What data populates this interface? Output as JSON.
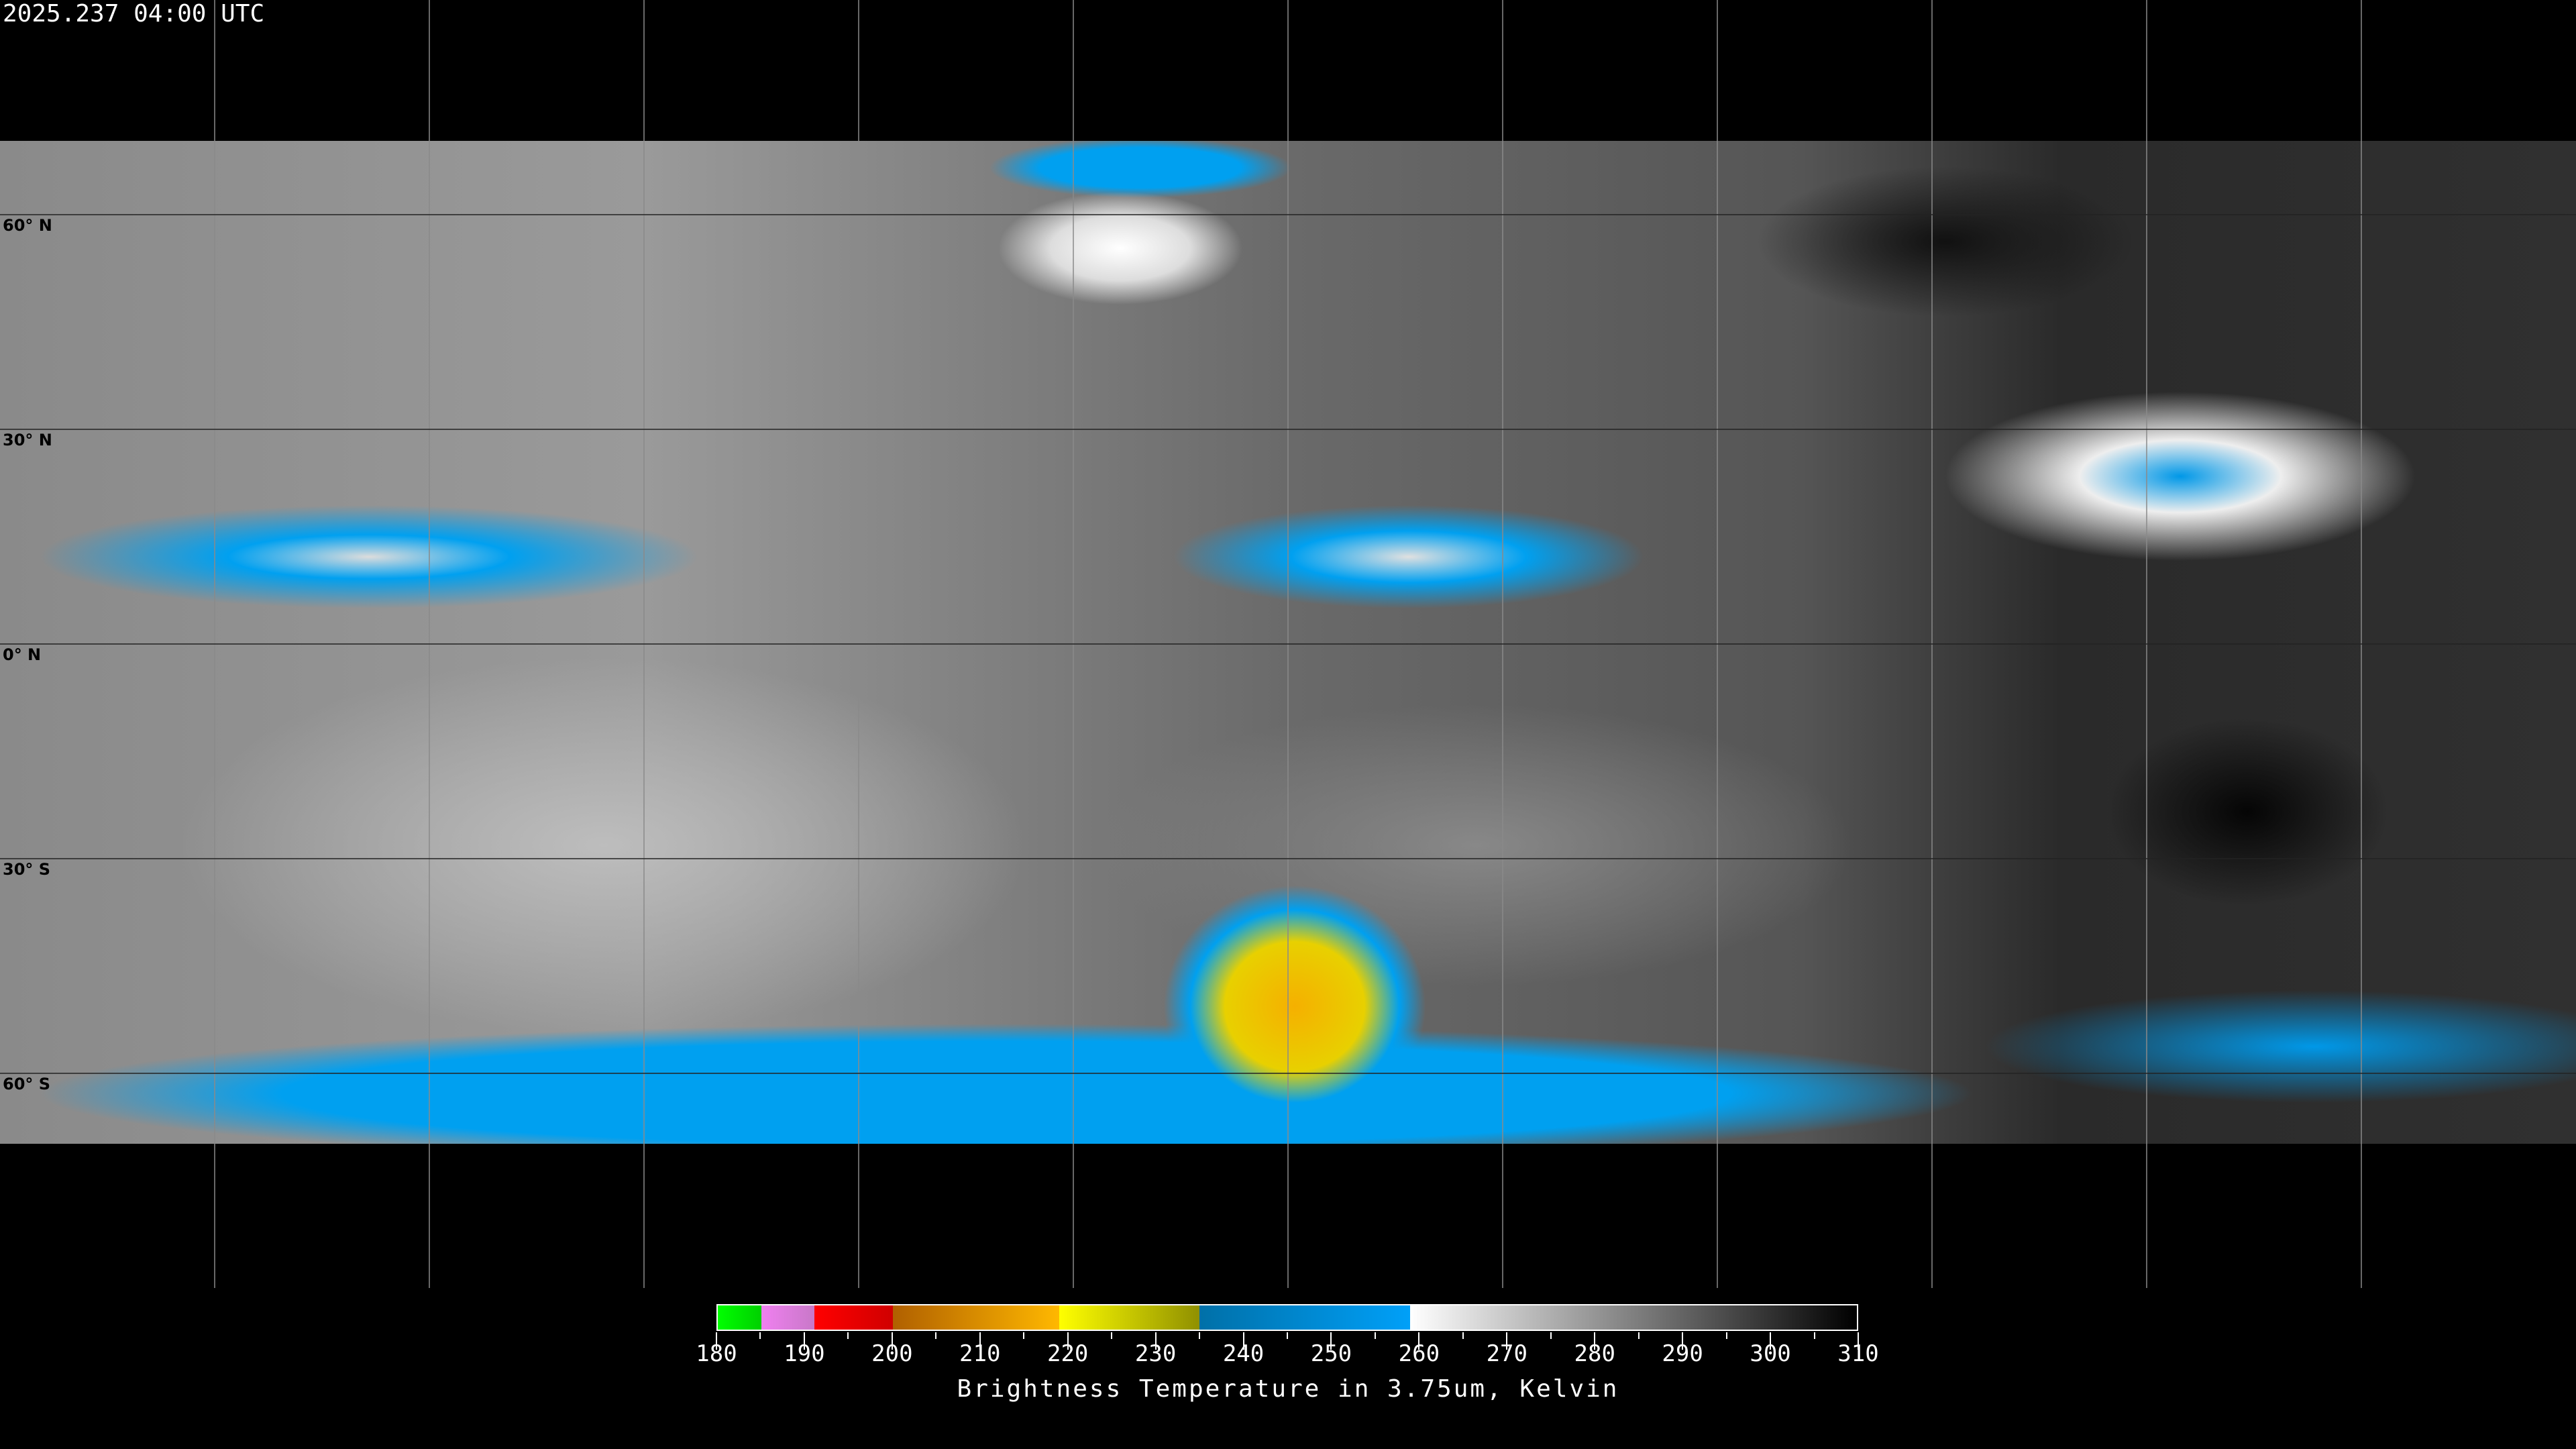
{
  "timestamp": "2025.237 04:00 UTC",
  "map": {
    "projection": "equirectangular",
    "grid_spacing_degrees": 30,
    "lat_labels": [
      "60° N",
      "30° N",
      "0° N",
      "30° S",
      "60° S"
    ],
    "lat_values": [
      60,
      30,
      0,
      -30,
      -60
    ]
  },
  "colorbar": {
    "min": 180,
    "max": 310,
    "tick_labels": [
      "180",
      "190",
      "200",
      "210",
      "220",
      "230",
      "240",
      "250",
      "260",
      "270",
      "280",
      "290",
      "300",
      "310"
    ],
    "segments": [
      {
        "from": 180,
        "to": 185,
        "c1": "#00ff00",
        "c2": "#00d000"
      },
      {
        "from": 185,
        "to": 191,
        "c1": "#f080f0",
        "c2": "#c878c8"
      },
      {
        "from": 191,
        "to": 200,
        "c1": "#ff0000",
        "c2": "#d00000"
      },
      {
        "from": 200,
        "to": 219,
        "c1": "#b06000",
        "c2": "#ffb800"
      },
      {
        "from": 219,
        "to": 235,
        "c1": "#ffff00",
        "c2": "#909000"
      },
      {
        "from": 235,
        "to": 259,
        "c1": "#0070a8",
        "c2": "#00a0f8"
      },
      {
        "from": 259,
        "to": 310,
        "c1": "#ffffff",
        "c2": "#000000"
      }
    ],
    "caption": "Brightness Temperature in 3.75um, Kelvin"
  }
}
